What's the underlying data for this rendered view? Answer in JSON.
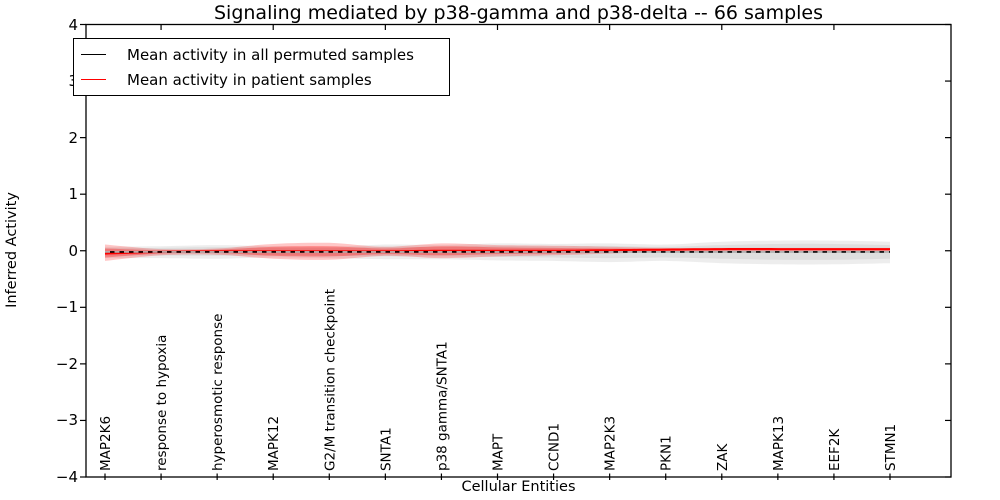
{
  "figure": {
    "title": "Signaling mediated by p38-gamma and p38-delta -- 66 samples",
    "background": "#ffffff"
  },
  "axes": {
    "x_label": "Cellular Entities",
    "y_label": "Inferred Activity",
    "y_tick_labels": [
      "4",
      "3",
      "2",
      "1",
      "0",
      "−1",
      "−2",
      "−3",
      "−4"
    ],
    "y_tick_values": [
      4,
      3,
      2,
      1,
      0,
      -1,
      -2,
      -3,
      -4
    ],
    "y_range": [
      -4,
      4
    ]
  },
  "legend": {
    "items": [
      {
        "label": "Mean activity in all permuted samples",
        "color": "#000000"
      },
      {
        "label": "Mean activity in patient samples",
        "color": "#ff0000"
      }
    ]
  },
  "chart_data": {
    "type": "line",
    "title": "Signaling mediated by p38-gamma and p38-delta -- 66 samples",
    "xlabel": "Cellular Entities",
    "ylabel": "Inferred Activity",
    "ylim": [
      -4,
      4
    ],
    "grid": false,
    "legend_position": "upper left",
    "categories": [
      "MAP2K6",
      "response to hypoxia",
      "hyperosmotic response",
      "MAPK12",
      "G2/M transition checkpoint",
      "SNTA1",
      "p38 gamma/SNTA1",
      "MAPT",
      "CCND1",
      "MAP2K3",
      "PKN1",
      "ZAK",
      "MAPK13",
      "EEF2K",
      "STMN1"
    ],
    "top_tick_category_indices": [
      1,
      3,
      5,
      7,
      9,
      11,
      13
    ],
    "series": [
      {
        "name": "Mean activity in all permuted samples",
        "color": "#000000",
        "band_color": "#999999",
        "mean": [
          -0.02,
          -0.02,
          -0.02,
          -0.02,
          -0.02,
          -0.02,
          -0.02,
          -0.02,
          -0.02,
          -0.02,
          -0.02,
          -0.02,
          -0.02,
          -0.02,
          -0.02
        ],
        "band_upper": [
          0.07,
          0.08,
          0.1,
          0.08,
          0.07,
          0.11,
          0.1,
          0.13,
          0.12,
          0.13,
          0.11,
          0.16,
          0.18,
          0.18,
          0.16
        ],
        "band_lower": [
          -0.13,
          -0.13,
          -0.14,
          -0.12,
          -0.13,
          -0.15,
          -0.15,
          -0.17,
          -0.18,
          -0.2,
          -0.18,
          -0.22,
          -0.24,
          -0.24,
          -0.22
        ],
        "band_inner_upper": [
          0.045,
          0.05,
          0.065,
          0.05,
          0.045,
          0.07,
          0.065,
          0.085,
          0.08,
          0.085,
          0.07,
          0.1,
          0.12,
          0.12,
          0.1
        ],
        "band_inner_lower": [
          -0.085,
          -0.085,
          -0.09,
          -0.08,
          -0.085,
          -0.1,
          -0.1,
          -0.11,
          -0.12,
          -0.13,
          -0.12,
          -0.14,
          -0.16,
          -0.16,
          -0.14
        ]
      },
      {
        "name": "Mean activity in patient samples",
        "color": "#ff0000",
        "band_color": "#ff0000",
        "mean": [
          -0.05,
          -0.02,
          -0.01,
          -0.01,
          -0.01,
          -0.01,
          0.0,
          0.0,
          0.0,
          0.01,
          0.02,
          0.03,
          0.03,
          0.03,
          0.03
        ],
        "band_upper": [
          0.11,
          0.03,
          0.04,
          0.12,
          0.14,
          0.07,
          0.13,
          0.1,
          0.09,
          0.07,
          0.05,
          0.05,
          0.05,
          0.05,
          0.05
        ],
        "band_lower": [
          -0.18,
          -0.08,
          -0.07,
          -0.14,
          -0.16,
          -0.09,
          -0.13,
          -0.1,
          -0.08,
          -0.05,
          -0.02,
          -0.01,
          -0.01,
          -0.01,
          -0.01
        ],
        "band_inner_upper": [
          0.04,
          0.01,
          0.02,
          0.07,
          0.08,
          0.04,
          0.08,
          0.06,
          0.05,
          0.04,
          0.035,
          0.04,
          0.04,
          0.04,
          0.04
        ],
        "band_inner_lower": [
          -0.12,
          -0.05,
          -0.04,
          -0.09,
          -0.1,
          -0.06,
          -0.08,
          -0.06,
          -0.05,
          -0.03,
          -0.005,
          0.0,
          0.0,
          0.0,
          0.0
        ]
      }
    ]
  }
}
